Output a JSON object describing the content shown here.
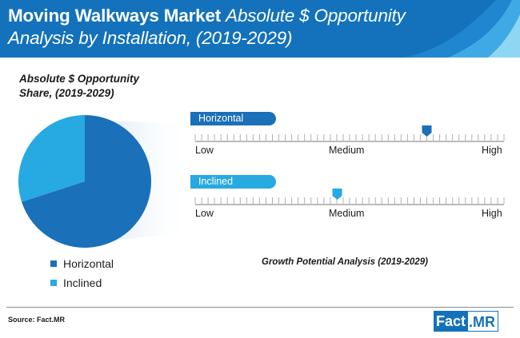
{
  "header": {
    "title_bold": "Moving Walkways Market",
    "title_italic_1": "Absolute $ Opportunity",
    "title_italic_2": "Analysis by Installation, (2019-2029)"
  },
  "colors": {
    "brand_blue": "#1372bb",
    "horizontal": "#1a70b9",
    "inclined": "#27a9e1",
    "light_blue": "#7fd0ef"
  },
  "chart_data": [
    {
      "type": "pie",
      "title": "Absolute $ Opportunity Share, (2019-2029)",
      "title_lines": [
        "Absolute $ Opportunity",
        "Share, (2019-2029)"
      ],
      "series": [
        {
          "name": "Horizontal",
          "value": 70,
          "color": "#1a70b9"
        },
        {
          "name": "Inclined",
          "value": 30,
          "color": "#27a9e1"
        }
      ],
      "legend": "bottom"
    },
    {
      "type": "scale",
      "title": "Growth Potential Analysis (2019-2029)",
      "tick_labels": [
        "Low",
        "Medium",
        "High"
      ],
      "scale_range": [
        0,
        1
      ],
      "items": [
        {
          "name": "Horizontal",
          "value": 0.75,
          "color": "#1a70b9"
        },
        {
          "name": "Inclined",
          "value": 0.46,
          "color": "#27a9e1"
        }
      ]
    }
  ],
  "footer": {
    "source": "Source: Fact.MR",
    "brand_part1": "Fact",
    "brand_part2": ".MR"
  }
}
